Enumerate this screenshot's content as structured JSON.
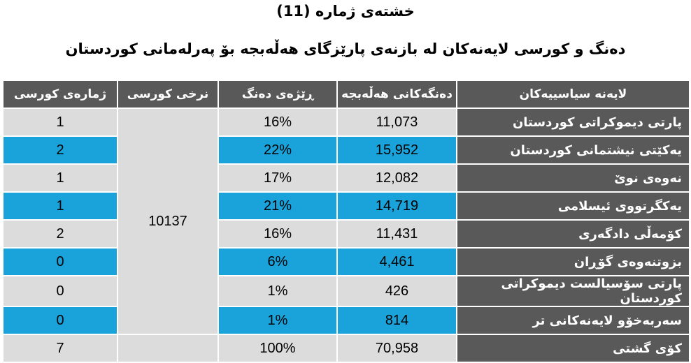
{
  "title": "خشتەی ژمارە (11)",
  "subtitle": "دەنگ و کورسی لایەنەکان لە بازنەی پارێزگای هەڵەبجە بۆ پەرلەمانی کوردستان",
  "headers": {
    "seats": "ژمارەی کورسی",
    "seat_rate": "نرخی کورسی",
    "vote_pct": "ڕێژەی دەنگ",
    "votes": "دەنگەکانی هەڵەبجە",
    "party": "لایەنە سیاسییەکان"
  },
  "seat_rate_value": "10137",
  "rows": [
    {
      "party": "پارتی دیموکراتی کوردستان",
      "votes": "11,073",
      "pct": "16%",
      "seats": "1"
    },
    {
      "party": "یەکێتی نیشتمانی کوردستان",
      "votes": "15,952",
      "pct": "22%",
      "seats": "2"
    },
    {
      "party": "نەوەی نوێ",
      "votes": "12,082",
      "pct": "17%",
      "seats": "1"
    },
    {
      "party": "یەکگرتووی ئیسلامی",
      "votes": "14,719",
      "pct": "21%",
      "seats": "1"
    },
    {
      "party": "کۆمەڵی دادگەری",
      "votes": "11,431",
      "pct": "16%",
      "seats": "2"
    },
    {
      "party": "بزوتنەوەی گۆڕان",
      "votes": "4,461",
      "pct": "6%",
      "seats": "0"
    },
    {
      "party": "پارتی سۆسیالست دیموکراتی کوردستان",
      "votes": "426",
      "pct": "1%",
      "seats": "0"
    },
    {
      "party": "سەربەخۆو لایەنەکانی تر",
      "votes": "814",
      "pct": "1%",
      "seats": "0"
    }
  ],
  "total": {
    "party": "کۆی گشتی",
    "votes": "70,958",
    "pct": "100%",
    "seats": "7"
  },
  "colors": {
    "header_bg": "#595959",
    "highlight": "#1aa3db",
    "cell_bg": "#dcdcdc"
  }
}
